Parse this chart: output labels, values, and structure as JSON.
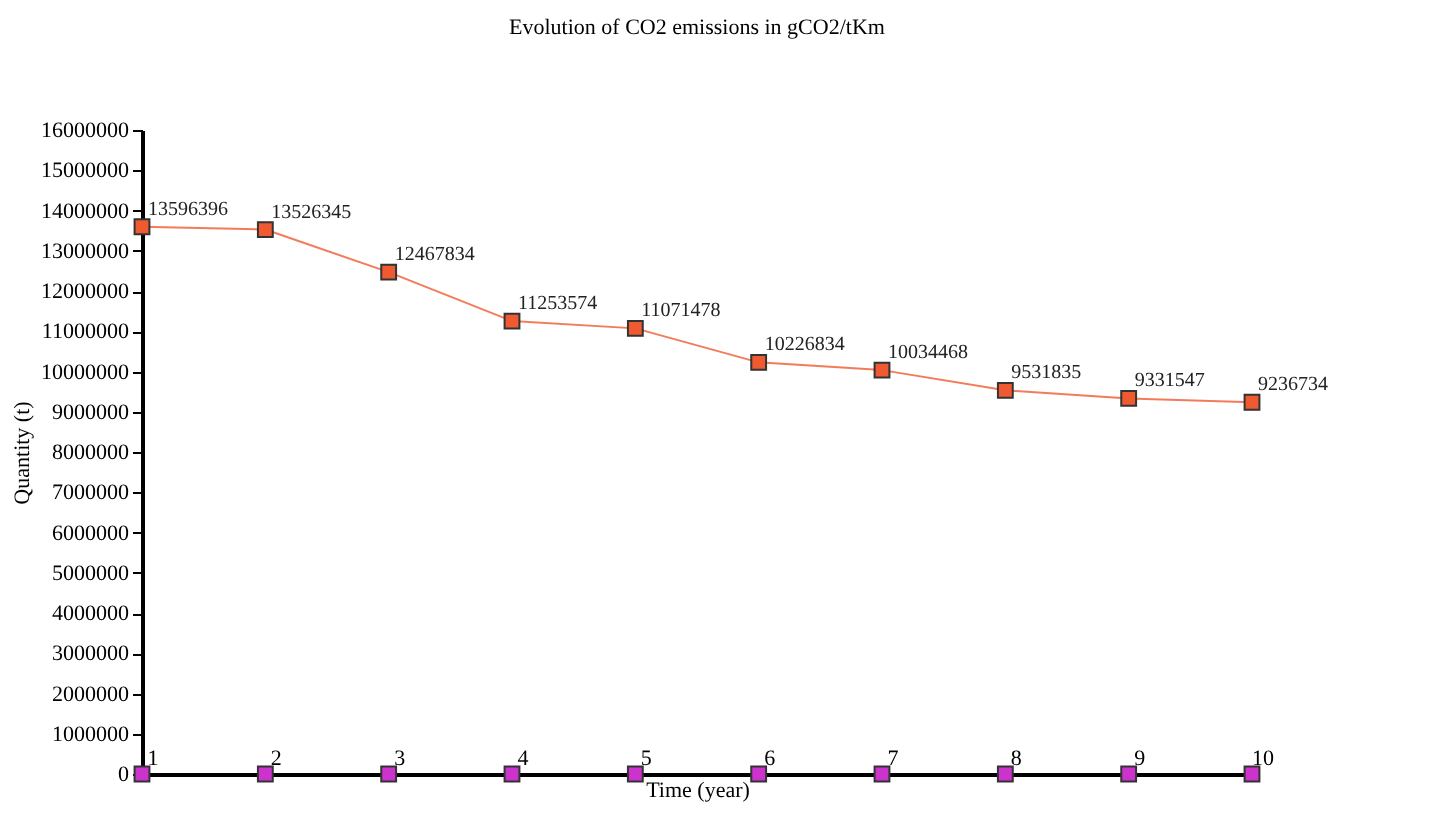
{
  "chart_data": {
    "type": "line",
    "title": "Evolution of CO2 emissions in gCO2/tKm",
    "xlabel": "Time (year)",
    "ylabel": "Quantity (t)",
    "x": [
      1,
      2,
      3,
      4,
      5,
      6,
      7,
      8,
      9,
      10
    ],
    "series": [
      {
        "color": "#f05a30",
        "values": [
          13596396,
          13526345,
          12467834,
          11253574,
          11071478,
          10226834,
          10034468,
          9531835,
          9331547,
          9236734
        ],
        "value_labels": [
          "13596396",
          "13526345",
          "12467834",
          "11253574",
          "11071478",
          "10226834",
          "10034468",
          "9531835",
          "9331547",
          "9236734"
        ]
      },
      {
        "type": "scatter",
        "color": "#cc33cc",
        "values": [
          0,
          0,
          0,
          0,
          0,
          0,
          0,
          0,
          0,
          0
        ]
      }
    ],
    "xlim": [
      1,
      10
    ],
    "xticks": [
      1,
      2,
      3,
      4,
      5,
      6,
      7,
      8,
      9,
      10
    ],
    "ylim": [
      0,
      16000000
    ],
    "yticks": [
      0,
      1000000,
      2000000,
      3000000,
      4000000,
      5000000,
      6000000,
      7000000,
      8000000,
      9000000,
      10000000,
      11000000,
      12000000,
      13000000,
      14000000,
      15000000,
      16000000
    ],
    "grid": false,
    "legend": false,
    "marker": "square",
    "line_style": "solid"
  }
}
